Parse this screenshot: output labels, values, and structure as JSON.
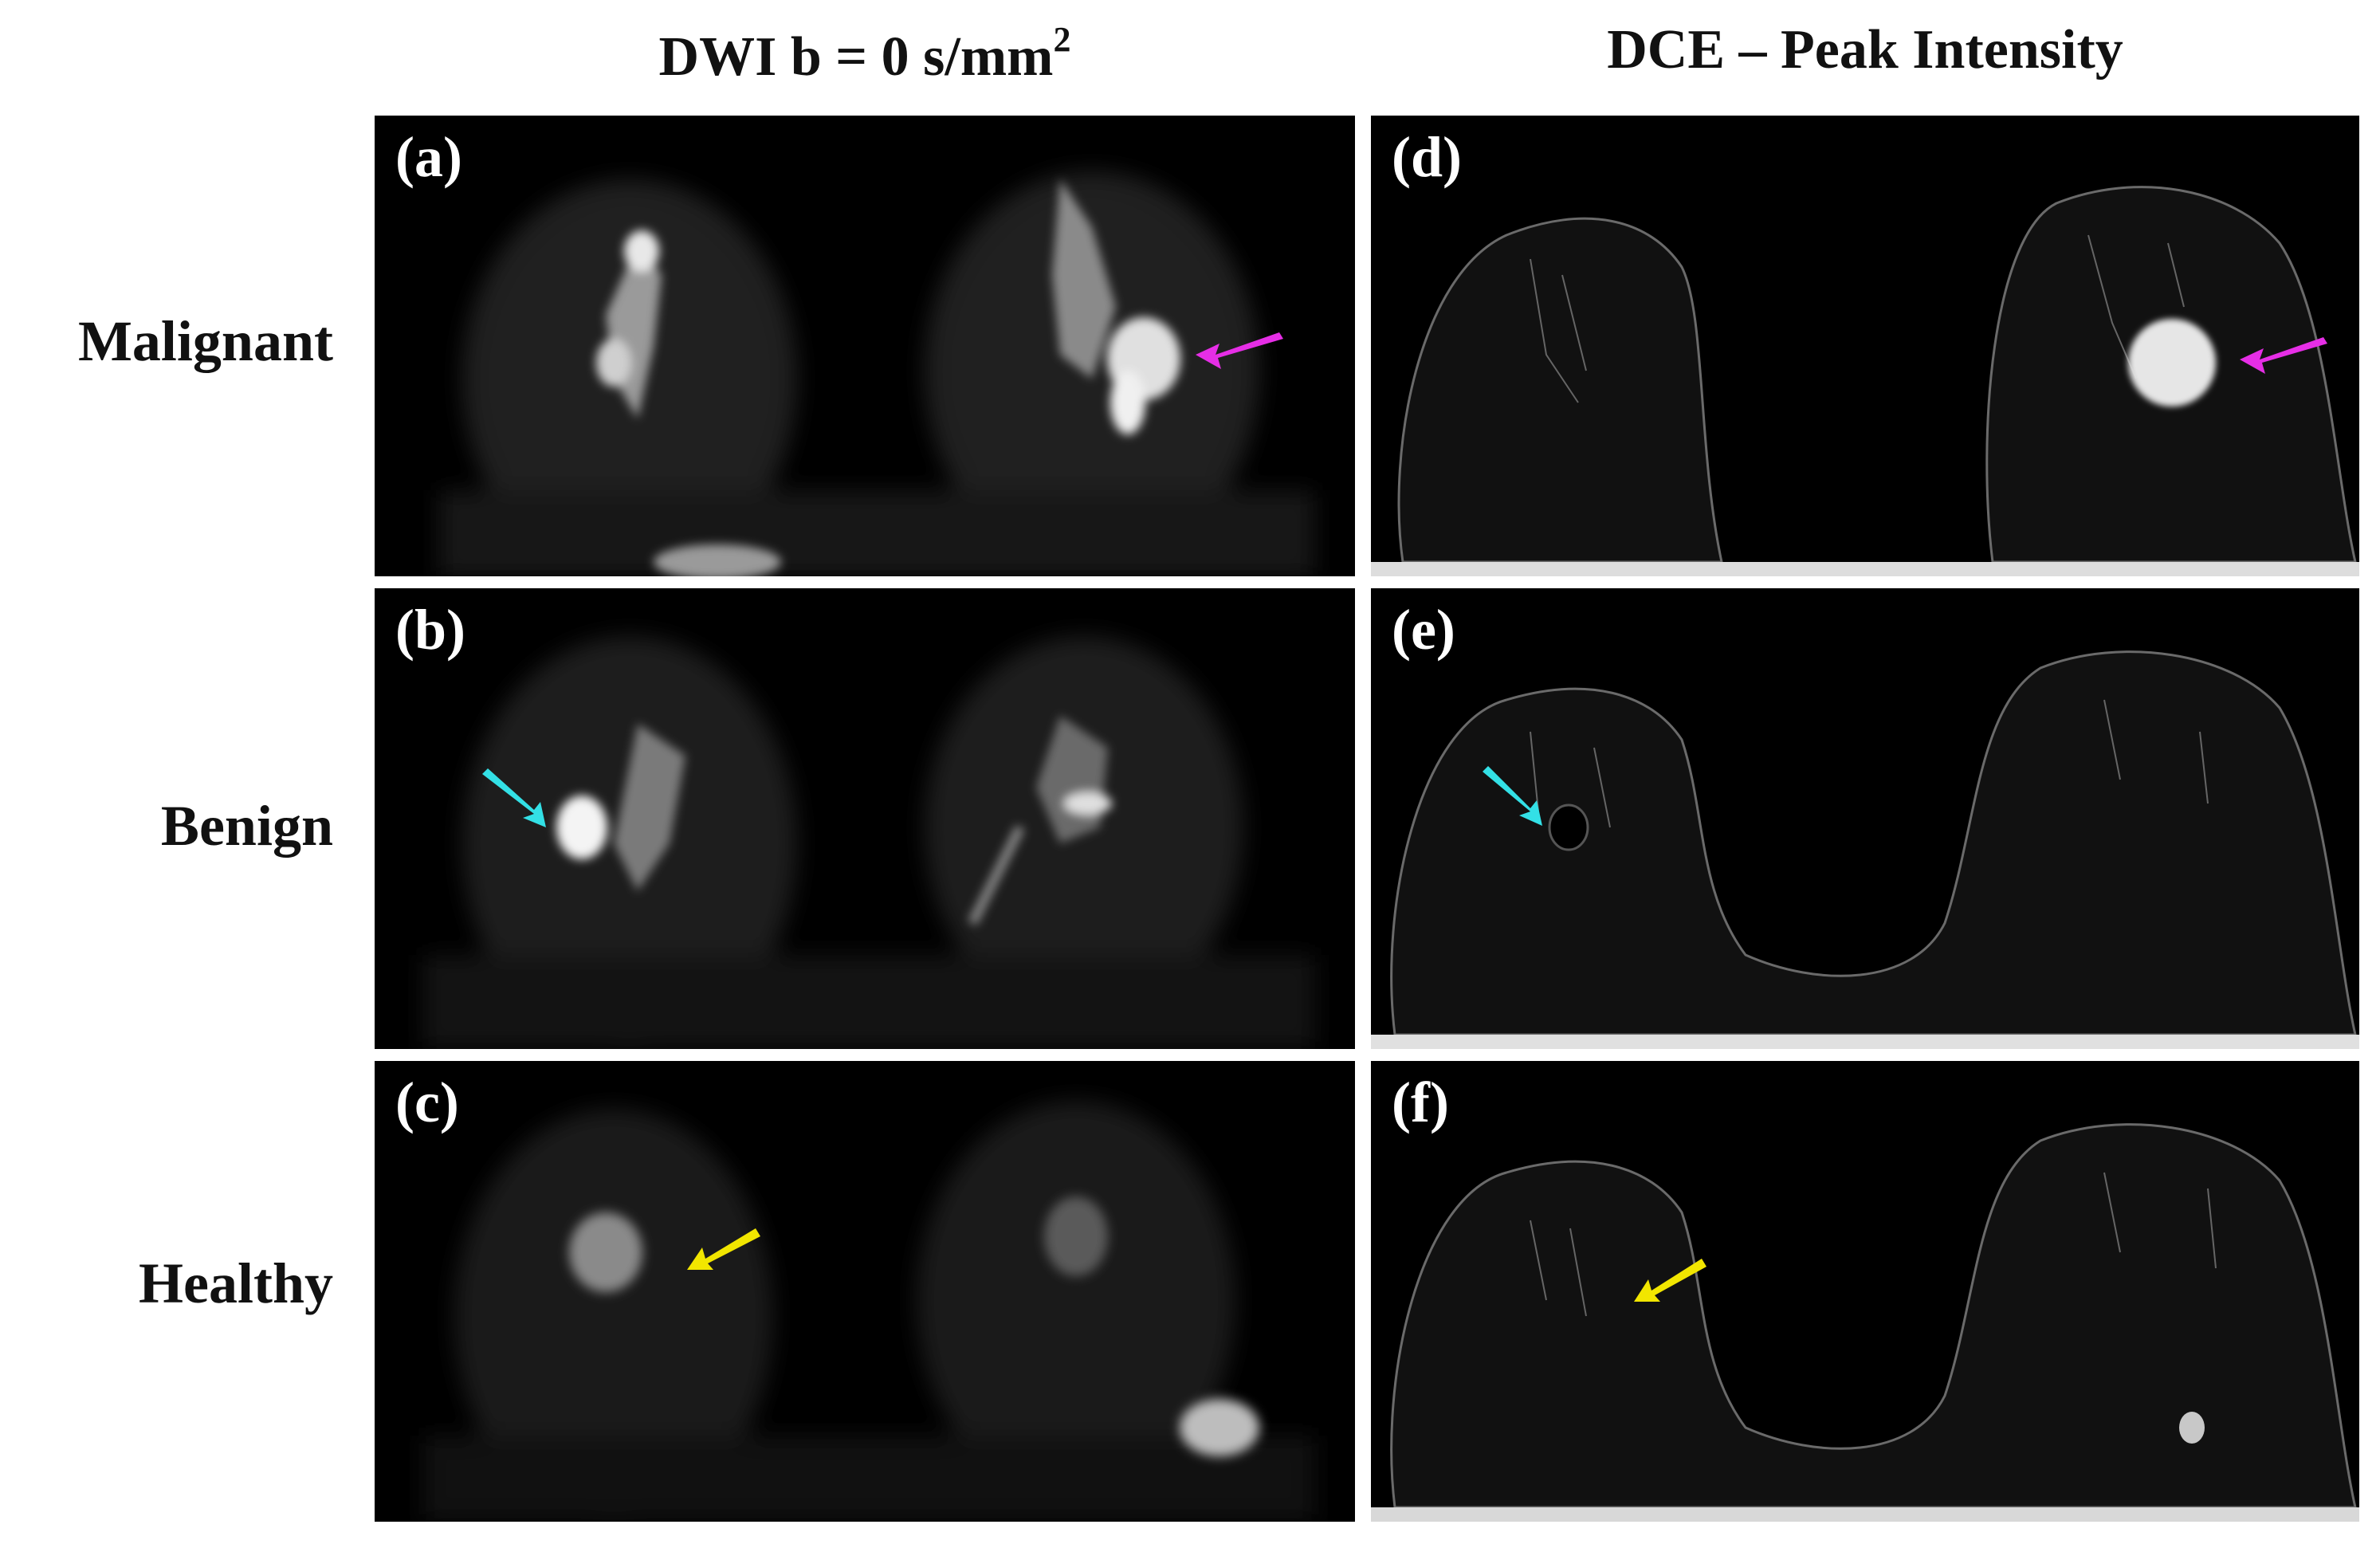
{
  "columns": {
    "dwi_title": "DWI b = 0 s/mm",
    "dwi_title_superscript": "2",
    "dce_title": "DCE – Peak Intensity"
  },
  "rows": {
    "malignant": "Malignant",
    "benign": "Benign",
    "healthy": "Healthy"
  },
  "panels": {
    "a": "(a)",
    "b": "(b)",
    "c": "(c)",
    "d": "(d)",
    "e": "(e)",
    "f": "(f)"
  },
  "arrow_colors": {
    "malignant": "#e62ee6",
    "benign": "#33e0e6",
    "healthy": "#f2e600"
  },
  "image_background": "#000000",
  "icons": {
    "malignant_arrow": "magenta-arrow-icon",
    "benign_arrow": "cyan-arrow-icon",
    "healthy_arrow": "yellow-arrow-icon"
  }
}
